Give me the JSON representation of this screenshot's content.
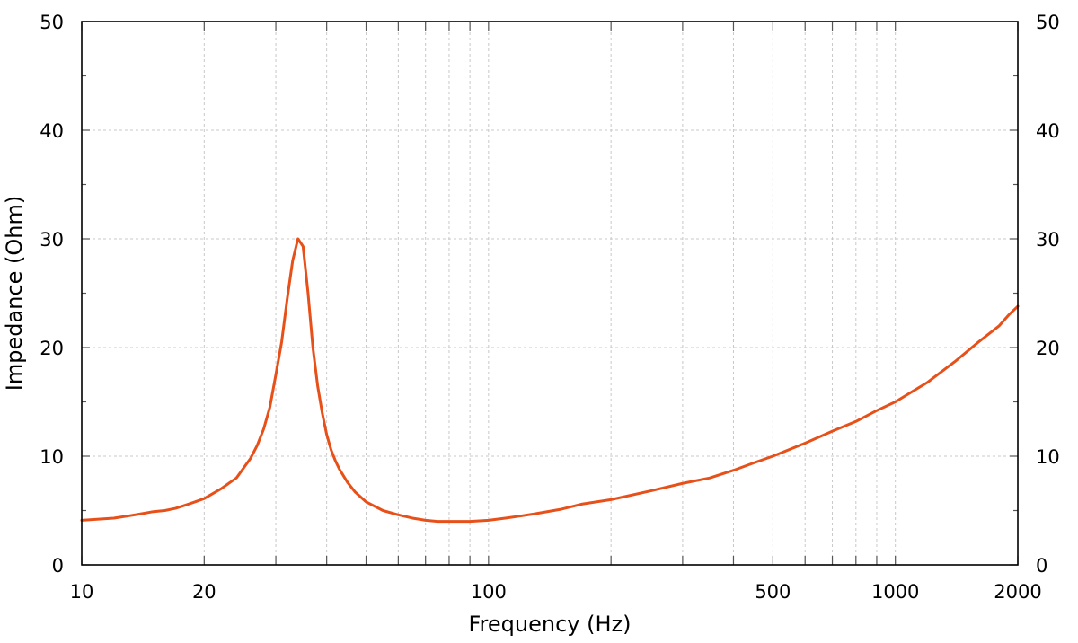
{
  "chart_data": {
    "type": "line",
    "title": "",
    "xlabel": "Frequency (Hz)",
    "ylabel": "Impedance (Ohm)",
    "xscale": "log",
    "xlim": [
      10,
      2000
    ],
    "ylim": [
      0,
      50
    ],
    "grid": true,
    "x_tick_labels": [
      "10",
      "20",
      "100",
      "500",
      "1000",
      "2000"
    ],
    "y_tick_labels": [
      "0",
      "10",
      "20",
      "30",
      "40",
      "50"
    ],
    "colors": {
      "series": "#e8501a"
    },
    "series": [
      {
        "x": [
          10,
          11,
          12,
          13,
          14,
          15,
          16,
          17,
          18,
          19,
          20,
          22,
          24,
          26,
          27,
          28,
          29,
          30,
          31,
          32,
          33,
          34,
          35,
          36,
          37,
          38,
          39,
          40,
          41,
          42,
          43,
          45,
          47,
          50,
          55,
          60,
          65,
          70,
          75,
          80,
          90,
          100,
          110,
          120,
          130,
          150,
          170,
          200,
          250,
          300,
          350,
          400,
          450,
          500,
          600,
          700,
          800,
          900,
          1000,
          1200,
          1400,
          1600,
          1800,
          1900,
          2000
        ],
        "y": [
          4.1,
          4.2,
          4.3,
          4.5,
          4.7,
          4.9,
          5.0,
          5.2,
          5.5,
          5.8,
          6.1,
          7.0,
          8.0,
          9.8,
          11.0,
          12.5,
          14.5,
          17.5,
          20.5,
          24.5,
          28.0,
          30.0,
          29.3,
          25.0,
          20.0,
          16.5,
          14.0,
          12.0,
          10.6,
          9.6,
          8.8,
          7.6,
          6.7,
          5.8,
          5.0,
          4.6,
          4.3,
          4.1,
          4.0,
          4.0,
          4.0,
          4.1,
          4.3,
          4.5,
          4.7,
          5.1,
          5.6,
          6.0,
          6.8,
          7.5,
          8.0,
          8.7,
          9.4,
          10.0,
          11.2,
          12.3,
          13.2,
          14.2,
          15.0,
          16.8,
          18.7,
          20.5,
          22.0,
          23.0,
          23.8
        ]
      }
    ]
  }
}
